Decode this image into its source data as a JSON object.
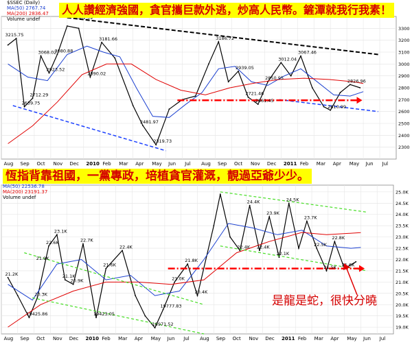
{
  "charts": [
    {
      "legend": {
        "title": "$SSEC (Daily)",
        "ma50": "MA(50) 2767.74",
        "ma200": "MA(200) 2836.47",
        "volume": "Volume undef"
      },
      "banner": "人人讚經濟強國，貪官攜巨款外逃，炒高人民幣。鏟潭就我行我素！",
      "ylim": [
        2200,
        3400
      ],
      "yticks": [
        2300,
        2400,
        2500,
        2600,
        2700,
        2800,
        2900,
        3000,
        3100,
        3200,
        3300
      ]
    },
    {
      "legend": {
        "ma50": "MA(50) 22536.78",
        "ma200": "MA(200) 23191.37",
        "volume": "Volume undef"
      },
      "banner": "恆指背靠祖國，一黨專政，培植貪官灌溉，靚過亞爺少少。",
      "annotation": "是龍是蛇，很快分曉",
      "ylim": [
        18700,
        25300
      ],
      "yticks": [
        "19.0K",
        "19.5K",
        "20.0K",
        "20.5K",
        "21.0K",
        "21.5K",
        "22.0K",
        "22.5K",
        "23.0K",
        "23.5K",
        "24.0K",
        "24.5K",
        "25.0K"
      ]
    }
  ],
  "chart_data": [
    {
      "type": "line",
      "title": "$SSEC (Daily)",
      "x": [
        "Aug",
        "Sep",
        "Oct",
        "Nov",
        "Dec",
        "2010",
        "Feb",
        "Mar",
        "Apr",
        "May",
        "Jun",
        "Jul",
        "Aug",
        "Sep",
        "Oct",
        "Nov",
        "Dec",
        "2011",
        "Feb",
        "Mar",
        "Apr",
        "May",
        "Jun",
        "Jul"
      ],
      "series": [
        {
          "name": "$SSEC",
          "points": [
            [
              0,
              3160
            ],
            [
              0.5,
              3215
            ],
            [
              1,
              2640
            ],
            [
              1.5,
              2712
            ],
            [
              2,
              3068
            ],
            [
              2.5,
              2924
            ],
            [
              3,
              3081
            ],
            [
              3.6,
              3320
            ],
            [
              4.3,
              3300
            ],
            [
              5,
              2890
            ],
            [
              5.7,
              3182
            ],
            [
              6.5,
              3050
            ],
            [
              7.6,
              2650
            ],
            [
              8.2,
              2482
            ],
            [
              9,
              2320
            ],
            [
              9.8,
              2620
            ],
            [
              10.6,
              2700
            ],
            [
              11.4,
              2730
            ],
            [
              12.2,
              3000
            ],
            [
              12.8,
              3187
            ],
            [
              13.4,
              2850
            ],
            [
              14,
              2939
            ],
            [
              14.6,
              2721
            ],
            [
              15.2,
              2661
            ],
            [
              15.8,
              2851
            ],
            [
              16.6,
              3012
            ],
            [
              17.2,
              2900
            ],
            [
              17.8,
              3067
            ],
            [
              18.5,
              2800
            ],
            [
              19.2,
              2640
            ],
            [
              19.6,
              2611
            ],
            [
              20.2,
              2760
            ],
            [
              20.8,
              2827
            ],
            [
              21.4,
              2800
            ]
          ]
        },
        {
          "name": "MA(50)",
          "value": 2767.74,
          "points": [
            [
              0,
              3000
            ],
            [
              1.2,
              2890
            ],
            [
              2.4,
              2860
            ],
            [
              3.6,
              3080
            ],
            [
              4.8,
              3150
            ],
            [
              5.8,
              3100
            ],
            [
              6.8,
              3060
            ],
            [
              7.8,
              2800
            ],
            [
              8.8,
              2560
            ],
            [
              9.8,
              2550
            ],
            [
              10.8,
              2660
            ],
            [
              11.8,
              2760
            ],
            [
              12.8,
              2960
            ],
            [
              13.8,
              2980
            ],
            [
              14.8,
              2850
            ],
            [
              15.8,
              2820
            ],
            [
              16.8,
              2900
            ],
            [
              17.8,
              2960
            ],
            [
              18.8,
              2850
            ],
            [
              19.8,
              2740
            ],
            [
              20.8,
              2730
            ],
            [
              21.6,
              2767
            ]
          ]
        },
        {
          "name": "MA(200)",
          "value": 2836.47,
          "points": [
            [
              0,
              2330
            ],
            [
              1.5,
              2480
            ],
            [
              3,
              2680
            ],
            [
              4.5,
              2910
            ],
            [
              6,
              3000
            ],
            [
              7.5,
              3000
            ],
            [
              9,
              2870
            ],
            [
              10.5,
              2780
            ],
            [
              12,
              2740
            ],
            [
              13.5,
              2800
            ],
            [
              15,
              2840
            ],
            [
              16.5,
              2870
            ],
            [
              18,
              2880
            ],
            [
              19.5,
              2870
            ],
            [
              21,
              2850
            ],
            [
              21.6,
              2836
            ]
          ]
        }
      ],
      "labels": [
        {
          "text": "3215.75",
          "x": 0,
          "y": 3215
        },
        {
          "text": "2639.75",
          "x": 1,
          "y": 2640
        },
        {
          "text": "2712.29",
          "x": 1.5,
          "y": 2712
        },
        {
          "text": "3068.02",
          "x": 2,
          "y": 3068
        },
        {
          "text": "2923.52",
          "x": 2.5,
          "y": 2924
        },
        {
          "text": "3080.88",
          "x": 3,
          "y": 3081
        },
        {
          "text": "3361.39",
          "x": 4.2,
          "y": 3361
        },
        {
          "text": "2890.02",
          "x": 5,
          "y": 2890
        },
        {
          "text": "3181.66",
          "x": 5.7,
          "y": 3182
        },
        {
          "text": "2481.97",
          "x": 8.2,
          "y": 2482
        },
        {
          "text": "2319.73",
          "x": 9,
          "y": 2320
        },
        {
          "text": "3186.72",
          "x": 12.8,
          "y": 3187
        },
        {
          "text": "2939.05",
          "x": 14,
          "y": 2939
        },
        {
          "text": "2721.46",
          "x": 14.6,
          "y": 2721
        },
        {
          "text": "2661.45",
          "x": 15.2,
          "y": 2661
        },
        {
          "text": "2850.95",
          "x": 15.8,
          "y": 2851
        },
        {
          "text": "3012.04",
          "x": 16.6,
          "y": 3012
        },
        {
          "text": "3067.46",
          "x": 17.8,
          "y": 3067
        },
        {
          "text": "2610.99",
          "x": 19.6,
          "y": 2611
        },
        {
          "text": "2826.96",
          "x": 20.8,
          "y": 2827
        }
      ],
      "trendlines": [
        {
          "kind": "resistance",
          "color": "#000000",
          "from": [
            3.6,
            3390
          ],
          "to": [
            22.5,
            3080
          ]
        },
        {
          "kind": "support",
          "color": "#1a3fff",
          "from": [
            0.3,
            2650
          ],
          "to": [
            9.6,
            2270
          ]
        },
        {
          "kind": "support",
          "color": "#1a3fff",
          "from": [
            16.5,
            2700
          ],
          "to": [
            22.5,
            2600
          ]
        },
        {
          "kind": "horizontal",
          "color": "#ff0000",
          "from": [
            10.3,
            2695
          ],
          "to": [
            21.2,
            2695
          ]
        }
      ],
      "ylim": [
        2200,
        3400
      ]
    },
    {
      "type": "line",
      "x": [
        "Aug",
        "Sep",
        "Oct",
        "Nov",
        "Dec",
        "2010",
        "Feb",
        "Mar",
        "Apr",
        "May",
        "Jun",
        "Jul",
        "Aug",
        "Sep",
        "Oct",
        "Nov",
        "Dec",
        "2011",
        "Feb",
        "Mar",
        "Apr",
        "May",
        "Jun",
        "Jul"
      ],
      "series": [
        {
          "name": "HSI",
          "points": [
            [
              0,
              21200
            ],
            [
              0.6,
              20400
            ],
            [
              1.3,
              19426
            ],
            [
              1.8,
              20300
            ],
            [
              2.5,
              22600
            ],
            [
              3,
              23100
            ],
            [
              3.5,
              21100
            ],
            [
              4,
              20900
            ],
            [
              4.6,
              22700
            ],
            [
              5.4,
              19423
            ],
            [
              6,
              21600
            ],
            [
              7,
              22400
            ],
            [
              7.8,
              20400
            ],
            [
              8.4,
              19500
            ],
            [
              9,
              18972
            ],
            [
              9.5,
              19778
            ],
            [
              10.2,
              21000
            ],
            [
              11,
              21800
            ],
            [
              11.6,
              20400
            ],
            [
              12.6,
              23500
            ],
            [
              13,
              24900
            ],
            [
              13.6,
              23000
            ],
            [
              14.2,
              22400
            ],
            [
              14.8,
              24400
            ],
            [
              15.4,
              22400
            ],
            [
              16,
              23900
            ],
            [
              16.6,
              22100
            ],
            [
              17.2,
              24500
            ],
            [
              17.8,
              22500
            ],
            [
              18.3,
              23700
            ],
            [
              18.9,
              22500
            ],
            [
              19.5,
              21500
            ],
            [
              20,
              22800
            ],
            [
              20.6,
              21600
            ],
            [
              21.3,
              21900
            ]
          ]
        },
        {
          "name": "MA(50)",
          "value": 22536.78,
          "points": [
            [
              0,
              20900
            ],
            [
              1.5,
              20200
            ],
            [
              3,
              21800
            ],
            [
              4.5,
              22000
            ],
            [
              6,
              21100
            ],
            [
              7.5,
              21300
            ],
            [
              9,
              20400
            ],
            [
              10.5,
              20600
            ],
            [
              12,
              22000
            ],
            [
              13.5,
              23600
            ],
            [
              15,
              23400
            ],
            [
              16.5,
              23100
            ],
            [
              18,
              23300
            ],
            [
              19.5,
              22600
            ],
            [
              21,
              22500
            ],
            [
              21.6,
              22536
            ]
          ]
        },
        {
          "name": "MA(200)",
          "value": 23191.37,
          "points": [
            [
              0,
              19000
            ],
            [
              2,
              20000
            ],
            [
              4,
              20600
            ],
            [
              6,
              21000
            ],
            [
              8,
              21000
            ],
            [
              10,
              20900
            ],
            [
              12,
              21100
            ],
            [
              14,
              22300
            ],
            [
              16,
              22800
            ],
            [
              18,
              23200
            ],
            [
              19.5,
              23100
            ],
            [
              21.6,
              23191
            ]
          ]
        }
      ],
      "labels": [
        {
          "text": "21.2K",
          "x": 0,
          "y": 21200
        },
        {
          "text": "20.3K",
          "x": 1.8,
          "y": 20300
        },
        {
          "text": "19425.86",
          "x": 1.3,
          "y": 19426
        },
        {
          "text": "21.9K",
          "x": 1.9,
          "y": 21900
        },
        {
          "text": "22.6K",
          "x": 2.5,
          "y": 22600
        },
        {
          "text": "23.1K",
          "x": 3,
          "y": 23100
        },
        {
          "text": "21.1K",
          "x": 3.5,
          "y": 21100
        },
        {
          "text": "22.7K",
          "x": 4.6,
          "y": 22700
        },
        {
          "text": "20.9K",
          "x": 4,
          "y": 20900
        },
        {
          "text": "19423.05",
          "x": 5.4,
          "y": 19423
        },
        {
          "text": "22.4K",
          "x": 7,
          "y": 22400
        },
        {
          "text": "21.6K",
          "x": 6,
          "y": 21600
        },
        {
          "text": "21.0K",
          "x": 10.2,
          "y": 21000
        },
        {
          "text": "19777.83",
          "x": 9.5,
          "y": 19778
        },
        {
          "text": "18971.52",
          "x": 9,
          "y": 18972
        },
        {
          "text": "21.8K",
          "x": 11,
          "y": 21800
        },
        {
          "text": "20.4K",
          "x": 11.6,
          "y": 20400
        },
        {
          "text": "24.4K",
          "x": 14.8,
          "y": 24400
        },
        {
          "text": "22.4K",
          "x": 14.2,
          "y": 22400
        },
        {
          "text": "23.9K",
          "x": 16,
          "y": 23900
        },
        {
          "text": "22.4K",
          "x": 15.4,
          "y": 22400
        },
        {
          "text": "24.5K",
          "x": 17.2,
          "y": 24500
        },
        {
          "text": "22.1K",
          "x": 16.6,
          "y": 22100
        },
        {
          "text": "23.7K",
          "x": 18.3,
          "y": 23700
        },
        {
          "text": "22.5K",
          "x": 18.9,
          "y": 22500
        },
        {
          "text": "22.8K",
          "x": 20,
          "y": 22800
        },
        {
          "text": "21.5K",
          "x": 19.5,
          "y": 21500
        },
        {
          "text": "21.6K",
          "x": 20.6,
          "y": 21600
        }
      ],
      "trendlines": [
        {
          "kind": "channel",
          "color": "#44dd22",
          "from": [
            1,
            22300
          ],
          "to": [
            12,
            20000
          ]
        },
        {
          "kind": "channel",
          "color": "#44dd22",
          "from": [
            1.5,
            20300
          ],
          "to": [
            12,
            18700
          ]
        },
        {
          "kind": "channel",
          "color": "#44dd22",
          "from": [
            13,
            25000
          ],
          "to": [
            22,
            24100
          ]
        },
        {
          "kind": "channel",
          "color": "#44dd22",
          "from": [
            13,
            22600
          ],
          "to": [
            22,
            21500
          ]
        },
        {
          "kind": "horizontal",
          "color": "#ff0000",
          "from": [
            9.8,
            21600
          ],
          "to": [
            21.5,
            21600
          ]
        }
      ],
      "ylim": [
        18700,
        25300
      ]
    }
  ]
}
